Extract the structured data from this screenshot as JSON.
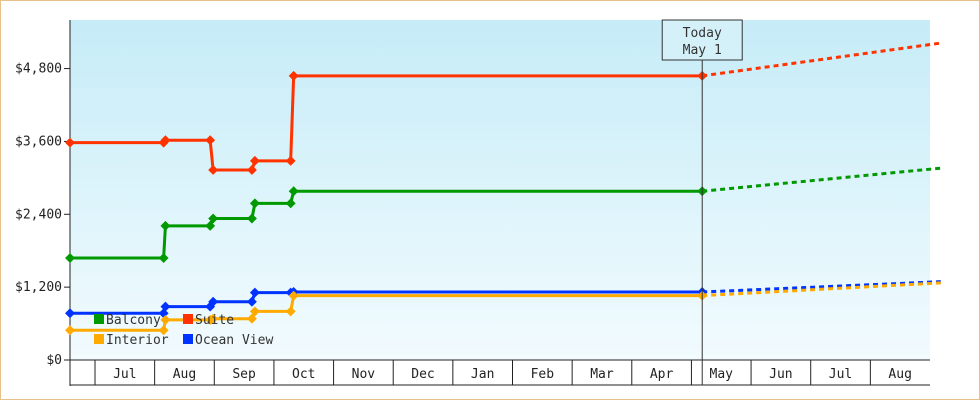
{
  "chart_data": {
    "type": "line",
    "title": "",
    "xlabel": "",
    "ylabel": "",
    "ylim": [
      0,
      5600
    ],
    "yticks": [
      {
        "value": 0,
        "label": "$0"
      },
      {
        "value": 1200,
        "label": "$1,200"
      },
      {
        "value": 2400,
        "label": "$2,400"
      },
      {
        "value": 3600,
        "label": "$3,600"
      },
      {
        "value": 4800,
        "label": "$4,800"
      }
    ],
    "months": [
      "Jul",
      "Aug",
      "Sep",
      "Oct",
      "Nov",
      "Dec",
      "Jan",
      "Feb",
      "Mar",
      "Apr",
      "May",
      "Jun",
      "Jul",
      "Aug"
    ],
    "today_marker": {
      "line1": "Today",
      "line2": "May 1",
      "x": 10.6
    },
    "grid": false,
    "legend_position": "bottom-left",
    "series": [
      {
        "name": "Suite",
        "color": "#ff3300",
        "points": [
          [
            0,
            3580
          ],
          [
            1.57,
            3580
          ],
          [
            1.6,
            3620
          ],
          [
            2.35,
            3620
          ],
          [
            2.4,
            3130
          ],
          [
            3.05,
            3130
          ],
          [
            3.1,
            3280
          ],
          [
            3.7,
            3280
          ],
          [
            3.75,
            4680
          ],
          [
            10.6,
            4680
          ]
        ],
        "forecast": [
          [
            10.6,
            4680
          ],
          [
            14.6,
            5220
          ]
        ]
      },
      {
        "name": "Balcony",
        "color": "#009900",
        "points": [
          [
            0,
            1680
          ],
          [
            1.57,
            1680
          ],
          [
            1.6,
            2210
          ],
          [
            2.35,
            2210
          ],
          [
            2.4,
            2330
          ],
          [
            3.05,
            2330
          ],
          [
            3.1,
            2580
          ],
          [
            3.7,
            2580
          ],
          [
            3.75,
            2780
          ],
          [
            10.6,
            2780
          ]
        ],
        "forecast": [
          [
            10.6,
            2780
          ],
          [
            14.6,
            3160
          ]
        ]
      },
      {
        "name": "Ocean View",
        "color": "#0033ff",
        "points": [
          [
            0,
            770
          ],
          [
            1.57,
            770
          ],
          [
            1.6,
            880
          ],
          [
            2.35,
            880
          ],
          [
            2.4,
            960
          ],
          [
            3.05,
            960
          ],
          [
            3.1,
            1110
          ],
          [
            3.7,
            1110
          ],
          [
            3.75,
            1120
          ],
          [
            10.6,
            1120
          ]
        ],
        "forecast": [
          [
            10.6,
            1120
          ],
          [
            14.6,
            1290
          ]
        ]
      },
      {
        "name": "Interior",
        "color": "#ffaa00",
        "points": [
          [
            0,
            490
          ],
          [
            1.57,
            490
          ],
          [
            1.6,
            660
          ],
          [
            2.35,
            660
          ],
          [
            2.4,
            680
          ],
          [
            3.05,
            680
          ],
          [
            3.1,
            800
          ],
          [
            3.7,
            800
          ],
          [
            3.75,
            1060
          ],
          [
            10.6,
            1060
          ]
        ],
        "forecast": [
          [
            10.6,
            1060
          ],
          [
            14.6,
            1270
          ]
        ]
      }
    ],
    "legend": [
      {
        "name": "Balcony",
        "color": "#009900"
      },
      {
        "name": "Suite",
        "color": "#ff3300"
      },
      {
        "name": "Interior",
        "color": "#ffaa00"
      },
      {
        "name": "Ocean View",
        "color": "#0033ff"
      }
    ]
  }
}
